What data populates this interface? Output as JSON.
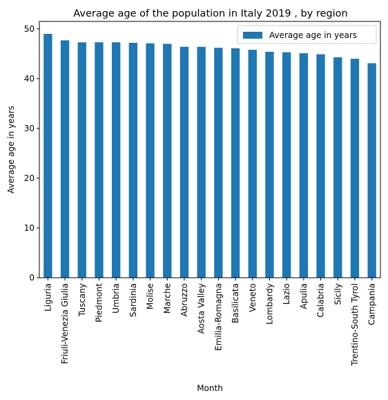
{
  "chart_data": {
    "type": "bar",
    "title": "Average age of the population in Italy 2019 , by region",
    "xlabel": "Month",
    "ylabel": "Average age in years",
    "ylim": [
      0,
      51.5
    ],
    "yticks": [
      0,
      10,
      20,
      30,
      40,
      50
    ],
    "grid": false,
    "legend_position": "top-right",
    "bar_color": "#1f77b4",
    "categories": [
      "Liguria",
      "Friuli-Venezia Giulia",
      "Tuscany",
      "Piedmont",
      "Umbria",
      "Sardinia",
      "Molise",
      "Marche",
      "Abruzzo",
      "Aosta Valley",
      "Emilia-Romagna",
      "Basilicata",
      "Veneto",
      "Lombardy",
      "Lazio",
      "Apulia",
      "Calabria",
      "Sicily",
      "Trentino-South Tyrol",
      "Campania"
    ],
    "series": [
      {
        "name": "Average age in years",
        "values": [
          49.0,
          47.7,
          47.3,
          47.3,
          47.3,
          47.2,
          47.1,
          47.0,
          46.4,
          46.4,
          46.2,
          46.1,
          45.8,
          45.4,
          45.3,
          45.1,
          44.9,
          44.3,
          44.0,
          43.1
        ]
      }
    ]
  }
}
